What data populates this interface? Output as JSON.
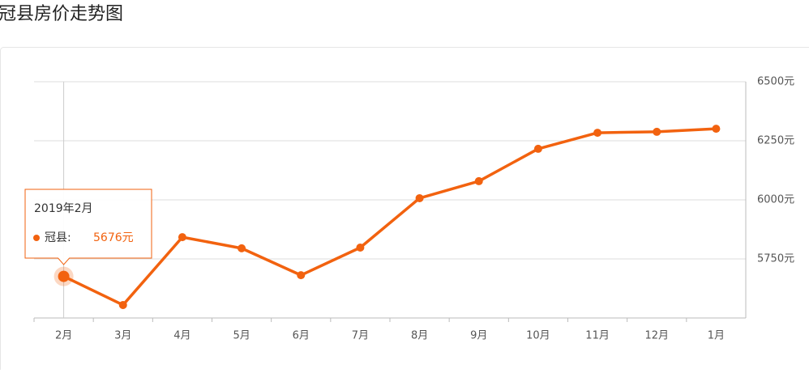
{
  "chart_data": {
    "type": "line",
    "title": "冠县房价走势图",
    "categories": [
      "2月",
      "3月",
      "4月",
      "5月",
      "6月",
      "7月",
      "8月",
      "9月",
      "10月",
      "11月",
      "12月",
      "1月"
    ],
    "series": [
      {
        "name": "冠县",
        "color": "#f2620f",
        "values": [
          5676,
          5555,
          5842,
          5795,
          5681,
          5798,
          6007,
          6079,
          6216,
          6284,
          6288,
          6301
        ]
      }
    ],
    "ylim": [
      5500,
      6500
    ],
    "yticks": [
      {
        "value": 5750,
        "label": "5750元"
      },
      {
        "value": 6000,
        "label": "6000元"
      },
      {
        "value": 6250,
        "label": "6250元"
      },
      {
        "value": 6500,
        "label": "6500元"
      }
    ],
    "grid": true,
    "tooltip": {
      "title": "2019年2月",
      "name": "冠县:",
      "label": "5676元"
    }
  }
}
